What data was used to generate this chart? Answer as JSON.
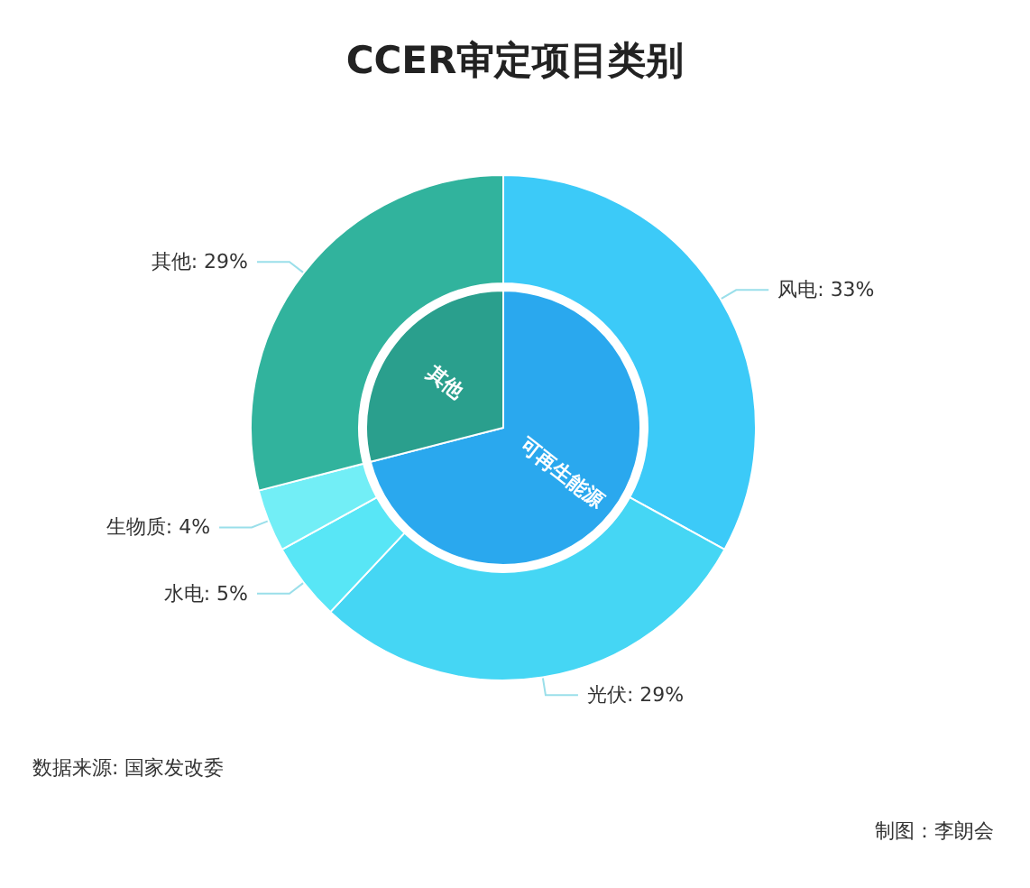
{
  "chart_data": [
    {
      "type": "pie",
      "title": "CCER审定项目类别",
      "categories": [
        "可再生能源",
        "其他"
      ],
      "values": [
        71,
        29
      ],
      "colors": [
        "#2aa8ee",
        "#2a9f8d"
      ]
    },
    {
      "type": "donut",
      "categories": [
        "风电",
        "光伏",
        "水电",
        "生物质",
        "其他"
      ],
      "values": [
        33,
        29,
        5,
        4,
        29
      ],
      "colors": [
        "#3ccaf8",
        "#45d6f4",
        "#58e6f6",
        "#72eef6",
        "#31b39d"
      ],
      "value_labels": [
        "33%",
        "29%",
        "5%",
        "4%",
        "29%"
      ],
      "annotations": [
        "数据来源: 国家发改委",
        "制图：李朗会"
      ]
    }
  ]
}
